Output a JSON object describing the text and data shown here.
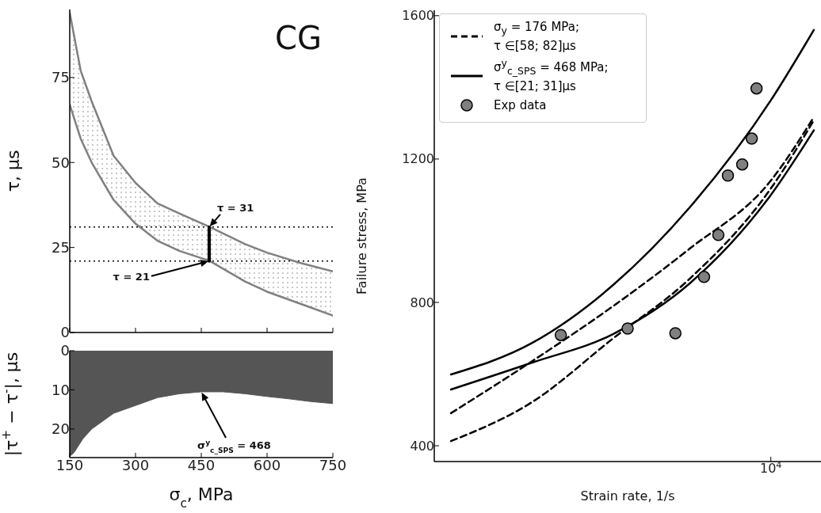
{
  "chart_data": [
    {
      "type": "line",
      "ylabel": "τ, μs",
      "x": [
        150,
        175,
        200,
        250,
        300,
        350,
        400,
        470,
        550,
        600,
        675,
        750
      ],
      "series": [
        {
          "color": "#808080",
          "values": [
            94,
            77,
            68,
            52,
            44,
            38,
            35,
            31,
            26,
            23.5,
            20.5,
            18
          ]
        },
        {
          "color": "#808080",
          "values": [
            67,
            57,
            50,
            39,
            32,
            27,
            24,
            21,
            15,
            12,
            8.5,
            5
          ]
        },
        {
          "color": "#000000",
          "x": [
            468,
            468
          ],
          "values": [
            21,
            31
          ]
        }
      ],
      "xlim": [
        150,
        750
      ],
      "xticks": [
        150,
        300,
        450,
        600,
        750
      ],
      "ylim": [
        0,
        95
      ],
      "yticks": [
        0,
        25,
        50,
        75
      ],
      "tick_labels": "y",
      "grid": false,
      "ref_lines": [
        {
          "axis": "y",
          "value": 31,
          "color": "#000000",
          "line_style": "dotted"
        },
        {
          "axis": "y",
          "value": 21,
          "color": "#000000",
          "line_style": "dotted"
        }
      ],
      "annotations": [
        "CG",
        {
          "text": "τ = 31",
          "x": 468,
          "y": 31
        },
        "τ = 21"
      ]
    },
    {
      "type": "area",
      "xlabel": "σ$_{c}$, MPa",
      "ylabel": "|τ$^{+}$ − τ$^{-}$|, μs",
      "x": [
        150,
        160,
        180,
        200,
        250,
        300,
        350,
        400,
        450,
        500,
        550,
        600,
        650,
        700,
        750
      ],
      "color": "#555555",
      "values": [
        27,
        26,
        22.5,
        20,
        16,
        14,
        12,
        11,
        10.5,
        10.5,
        11,
        11.7,
        12.3,
        13,
        13.5
      ],
      "xlim": [
        150,
        750
      ],
      "xticks": [
        150,
        300,
        450,
        600,
        750
      ],
      "ylim": [
        27.3,
        0
      ],
      "yticks": [
        0,
        10,
        20
      ],
      "grid": false,
      "annotations": [
        "σ$^{y}$$_{c_SPS}$ = 468"
      ]
    },
    {
      "type": "line",
      "xlabel": "Strain rate, 1/s",
      "ylabel": "Failure stress, MPa",
      "legend": "top left",
      "grid": false,
      "categories": [
        null,
        null,
        null,
        null,
        null,
        null,
        null,
        null,
        null,
        null,
        null,
        null,
        null,
        null,
        null,
        null,
        null,
        null,
        null,
        null,
        null,
        null,
        null,
        null,
        null,
        null,
        null,
        null,
        null,
        null,
        null,
        null,
        null,
        null,
        null,
        null,
        null,
        null,
        null,
        null,
        null,
        null,
        null,
        null,
        null,
        null,
        null,
        null,
        null,
        null,
        null,
        null,
        null,
        null,
        null,
        null,
        null,
        null,
        null,
        null,
        null,
        null,
        null,
        null,
        null,
        null,
        null,
        null,
        null,
        null,
        "10$^{4}$",
        null,
        null,
        null,
        null,
        null,
        null,
        null,
        null,
        null,
        null
      ],
      "ylim": [
        356,
        1615
      ],
      "yticks": [
        400,
        800,
        1200,
        1600
      ],
      "series": [
        {
          "name": "σ$_{y}$ = 176 MPa; τ ∈[58; 82]μs",
          "color": "#000000",
          "line_style": "dashed",
          "values": [
            null,
            null,
            null,
            491,
            null,
            null,
            null,
            null,
            null,
            null,
            null,
            null,
            null,
            null,
            null,
            null,
            null,
            null,
            null,
            null,
            636,
            null,
            null,
            null,
            null,
            null,
            null,
            null,
            null,
            null,
            null,
            null,
            null,
            null,
            null,
            null,
            null,
            790,
            null,
            null,
            null,
            null,
            null,
            null,
            null,
            null,
            null,
            null,
            null,
            null,
            null,
            null,
            null,
            950,
            null,
            null,
            null,
            null,
            null,
            null,
            null,
            null,
            null,
            null,
            null,
            null,
            null,
            null,
            null,
            null,
            1140,
            null,
            null,
            null,
            null,
            null,
            null,
            null,
            null,
            1317,
            null
          ]
        },
        {
          "color": "#000000",
          "line_style": "dashed",
          "values": [
            null,
            null,
            null,
            413,
            null,
            null,
            null,
            null,
            null,
            null,
            null,
            null,
            null,
            null,
            null,
            null,
            null,
            null,
            null,
            null,
            522,
            null,
            null,
            null,
            null,
            null,
            null,
            null,
            null,
            null,
            null,
            null,
            null,
            null,
            null,
            null,
            null,
            700,
            null,
            null,
            null,
            null,
            null,
            null,
            null,
            null,
            null,
            null,
            null,
            null,
            null,
            null,
            null,
            866,
            null,
            null,
            null,
            null,
            null,
            null,
            null,
            null,
            null,
            null,
            null,
            null,
            null,
            null,
            null,
            null,
            1118,
            null,
            null,
            null,
            null,
            null,
            null,
            null,
            null,
            1308,
            null
          ]
        },
        {
          "name": "σ$^{y}$$_{c_SPS}$ = 468 MPa; τ ∈[21; 31]μs",
          "color": "#000000",
          "line_style": "solid",
          "values": [
            null,
            null,
            null,
            599,
            null,
            null,
            null,
            null,
            null,
            null,
            null,
            null,
            null,
            null,
            null,
            null,
            null,
            null,
            null,
            null,
            687,
            null,
            null,
            null,
            null,
            null,
            null,
            null,
            null,
            null,
            null,
            null,
            null,
            null,
            null,
            null,
            null,
            849,
            null,
            null,
            null,
            null,
            null,
            null,
            null,
            null,
            null,
            null,
            null,
            null,
            null,
            null,
            null,
            1065,
            null,
            null,
            null,
            null,
            null,
            null,
            null,
            null,
            null,
            null,
            null,
            null,
            null,
            null,
            null,
            null,
            1364,
            null,
            null,
            null,
            null,
            null,
            null,
            null,
            null,
            1560,
            null
          ]
        },
        {
          "color": "#000000",
          "line_style": "solid",
          "values": [
            null,
            null,
            null,
            557,
            null,
            null,
            null,
            null,
            null,
            null,
            null,
            null,
            null,
            null,
            null,
            null,
            null,
            null,
            null,
            null,
            632,
            null,
            null,
            null,
            null,
            null,
            null,
            null,
            null,
            null,
            null,
            null,
            null,
            null,
            null,
            null,
            null,
            712,
            null,
            null,
            null,
            null,
            null,
            null,
            null,
            null,
            null,
            null,
            null,
            null,
            null,
            null,
            null,
            853,
            null,
            null,
            null,
            null,
            null,
            null,
            null,
            null,
            null,
            null,
            null,
            null,
            null,
            null,
            null,
            null,
            1100,
            null,
            null,
            null,
            null,
            null,
            null,
            null,
            null,
            1280,
            null
          ]
        },
        {
          "type": "scatter",
          "name": "Exp data",
          "color": "#808080",
          "marker": "circle",
          "values": [
            null,
            null,
            null,
            null,
            null,
            null,
            null,
            null,
            null,
            null,
            null,
            null,
            null,
            null,
            null,
            null,
            null,
            null,
            null,
            null,
            null,
            null,
            null,
            null,
            null,
            null,
            709,
            null,
            null,
            null,
            null,
            null,
            null,
            null,
            null,
            null,
            null,
            null,
            null,
            null,
            727,
            null,
            null,
            null,
            null,
            null,
            null,
            null,
            null,
            null,
            714,
            null,
            null,
            null,
            null,
            null,
            871,
            null,
            null,
            988,
            null,
            1154,
            null,
            null,
            1185,
            null,
            1257,
            1397,
            null,
            null,
            null,
            null,
            null,
            null,
            null,
            null,
            null,
            null,
            null,
            null,
            null
          ]
        }
      ]
    }
  ]
}
